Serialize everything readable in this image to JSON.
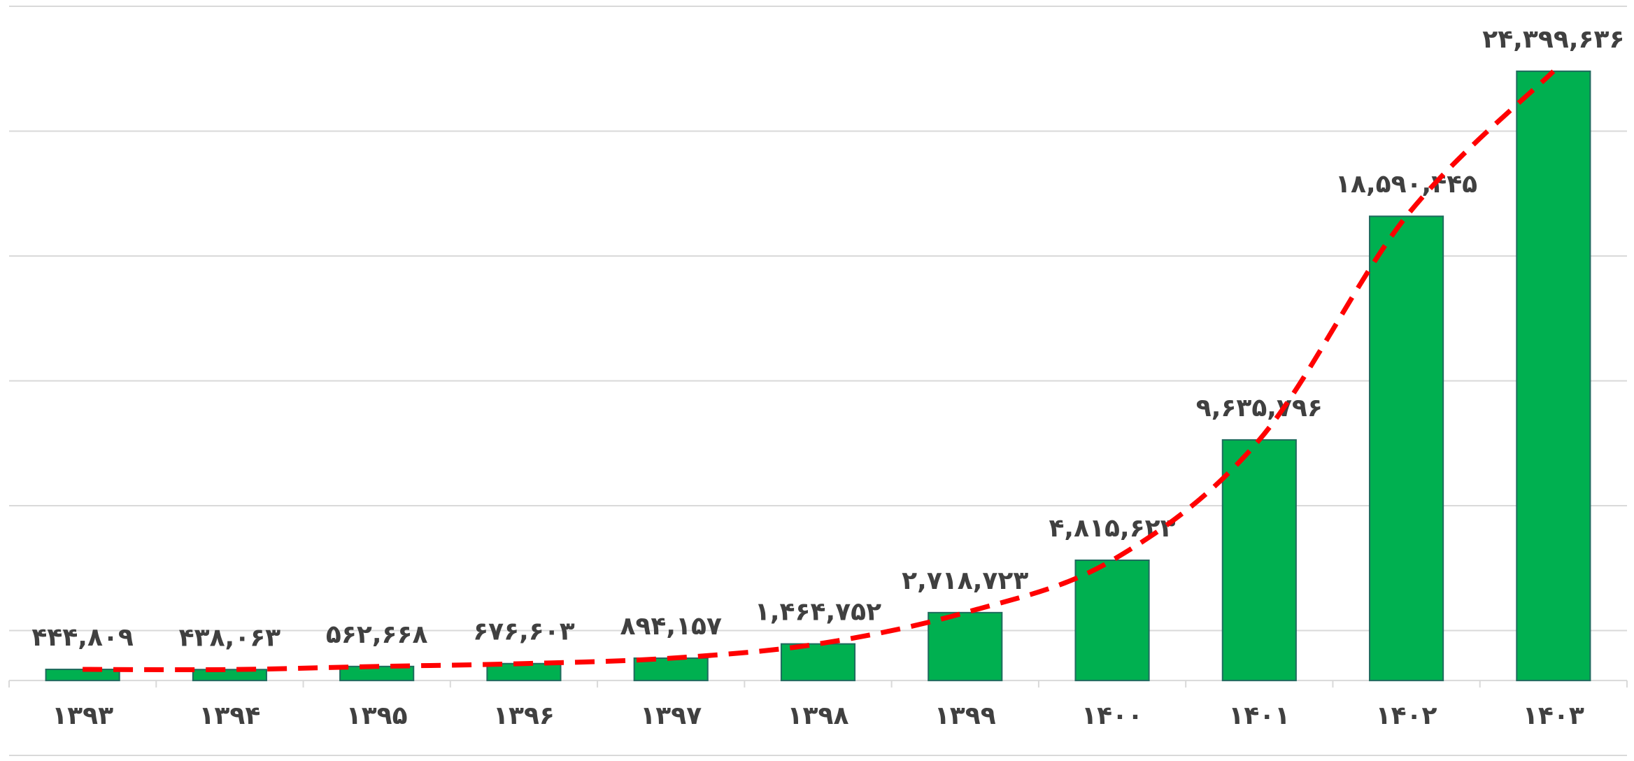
{
  "chart_data": {
    "type": "bar",
    "categories": [
      "۱۳۹۳",
      "۱۳۹۴",
      "۱۳۹۵",
      "۱۳۹۶",
      "۱۳۹۷",
      "۱۳۹۸",
      "۱۳۹۹",
      "۱۴۰۰",
      "۱۴۰۱",
      "۱۴۰۲",
      "۱۴۰۳"
    ],
    "values": [
      444809,
      438063,
      562668,
      676603,
      894157,
      1464752,
      2718723,
      4815623,
      9635796,
      18590445,
      24399636
    ],
    "value_labels": [
      "۴۴۴,۸۰۹",
      "۴۳۸,۰۶۳",
      "۵۶۲,۶۶۸",
      "۶۷۶,۶۰۳",
      "۸۹۴,۱۵۷",
      "۱,۴۶۴,۷۵۲",
      "۲,۷۱۸,۷۲۳",
      "۴,۸۱۵,۶۲۳",
      "۹,۶۳۵,۷۹۶",
      "۱۸,۵۹۰,۴۴۵",
      "۲۴,۳۹۹,۶۳۶"
    ],
    "color": "#00b050",
    "ylim": [
      -3000000,
      27000000
    ],
    "yticks": [
      -3000000,
      2000000,
      7000000,
      12000000,
      17000000,
      22000000,
      27000000
    ],
    "grid": true,
    "trendline": {
      "color": "#ff0000",
      "dashed": true
    }
  }
}
